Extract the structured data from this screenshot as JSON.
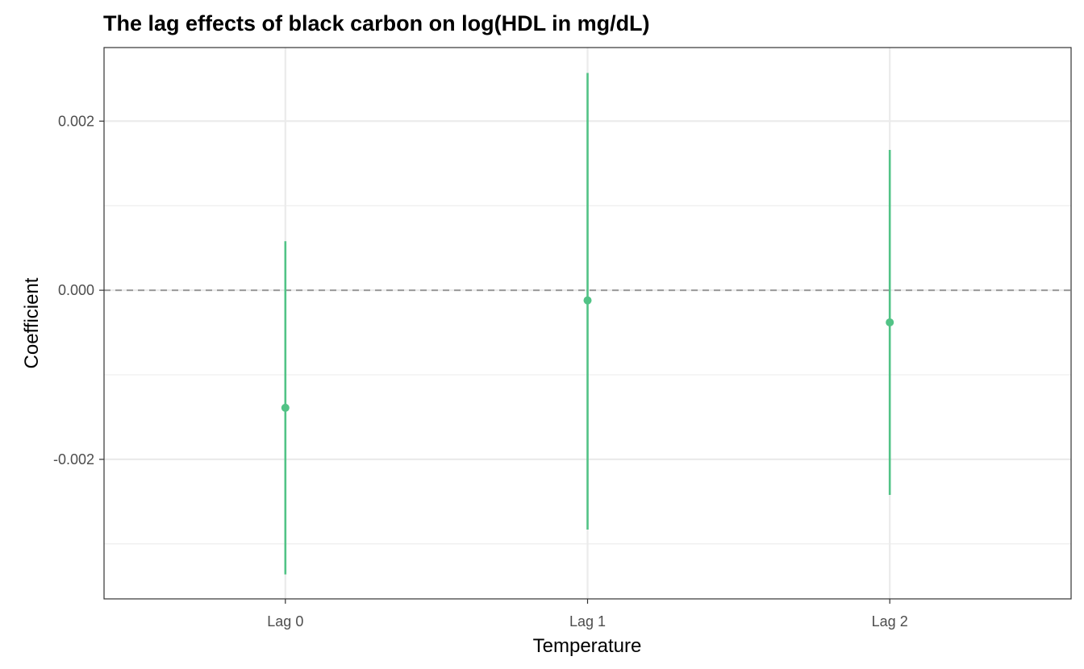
{
  "chart_data": {
    "type": "scatter",
    "title": "The lag effects of black carbon on log(HDL in mg/dL)",
    "xlabel": "Temperature",
    "ylabel": "Coefficient",
    "categories": [
      "Lag 0",
      "Lag 1",
      "Lag 2"
    ],
    "series": [
      {
        "estimates": [
          -0.00139,
          -0.00012,
          -0.00038
        ],
        "lower": [
          -0.00336,
          -0.00283,
          -0.00242
        ],
        "upper": [
          0.00058,
          0.00257,
          0.00166
        ]
      }
    ],
    "reference_line": {
      "y": 0,
      "style": "dashed"
    },
    "ylim": [
      -0.00365,
      0.00287
    ],
    "y_ticks": [
      -0.002,
      0,
      0.002
    ],
    "y_tick_labels": [
      "-0.002",
      "0.000",
      "0.002"
    ],
    "grid": true,
    "colors": {
      "points": "#52c386",
      "reference_line": "#999999",
      "grid": "#ebebeb",
      "panel_border": "#333333"
    }
  }
}
